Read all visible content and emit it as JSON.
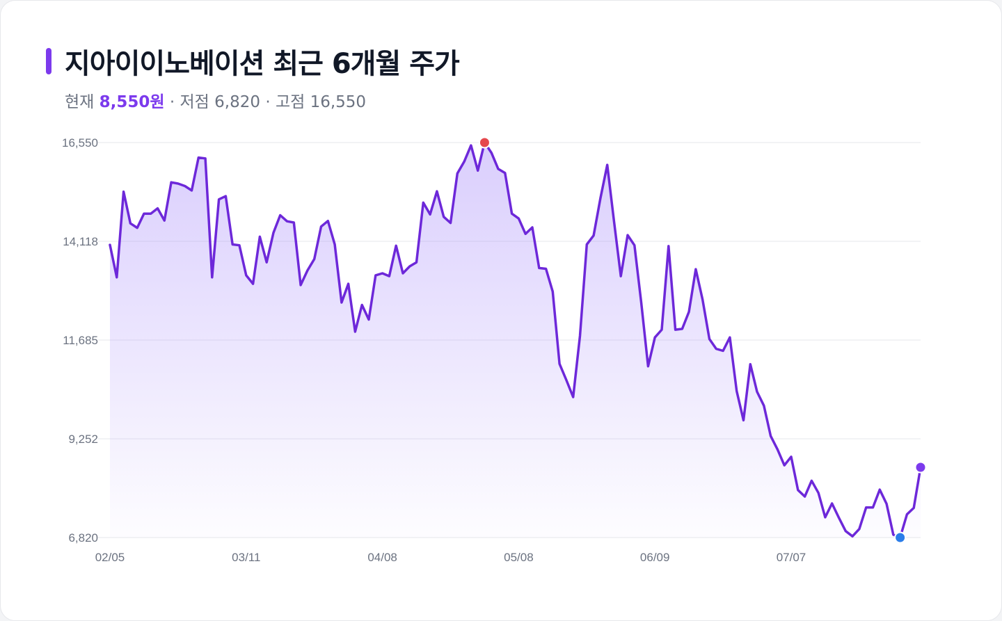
{
  "header": {
    "title": "지아이이노베이션 최근 6개월 주가",
    "current_label": "현재",
    "current_value": "8,550원",
    "sep": "·",
    "low_label": "저점",
    "low_value": "6,820",
    "high_label": "고점",
    "high_value": "16,550"
  },
  "colors": {
    "line": "#6d28d9",
    "fill": "#a78bfa",
    "high_marker": "#e5484d",
    "low_marker": "#2b7de9",
    "current_marker": "#7c3aed",
    "grid": "#e5e7eb"
  },
  "chart_data": {
    "type": "area",
    "ylim": [
      6820,
      16550
    ],
    "y_ticks": [
      6820,
      9252,
      11685,
      14118,
      16550
    ],
    "y_tick_labels": [
      "6,820",
      "9,252",
      "11,685",
      "14,118",
      "16,550"
    ],
    "x_tick_labels": [
      "02/05",
      "03/11",
      "04/08",
      "05/08",
      "06/09",
      "07/07"
    ],
    "x_tick_index": [
      0,
      20,
      40,
      60,
      80,
      100
    ],
    "values": [
      14030,
      13230,
      15340,
      14560,
      14450,
      14800,
      14800,
      14930,
      14630,
      15570,
      15540,
      15480,
      15370,
      16180,
      16160,
      13230,
      15150,
      15230,
      14040,
      14020,
      13280,
      13070,
      14230,
      13600,
      14330,
      14760,
      14610,
      14580,
      13040,
      13400,
      13680,
      14480,
      14620,
      14040,
      12610,
      13070,
      11890,
      12550,
      12190,
      13280,
      13330,
      13260,
      14010,
      13330,
      13500,
      13600,
      15070,
      14780,
      15350,
      14720,
      14570,
      15790,
      16080,
      16480,
      15860,
      16550,
      16300,
      15900,
      15800,
      14800,
      14680,
      14300,
      14460,
      13460,
      13440,
      12880,
      11100,
      10700,
      10280,
      11790,
      14040,
      14260,
      15180,
      16000,
      14600,
      13260,
      14270,
      14020,
      12600,
      11040,
      11750,
      11940,
      14000,
      11940,
      11960,
      12380,
      13430,
      12680,
      11710,
      11470,
      11420,
      11750,
      10430,
      9710,
      11090,
      10410,
      10070,
      9320,
      8990,
      8600,
      8810,
      7990,
      7830,
      8220,
      7920,
      7320,
      7660,
      7310,
      6980,
      6850,
      7030,
      7560,
      7560,
      8000,
      7650,
      6890,
      6820,
      7390,
      7550,
      8550
    ]
  }
}
